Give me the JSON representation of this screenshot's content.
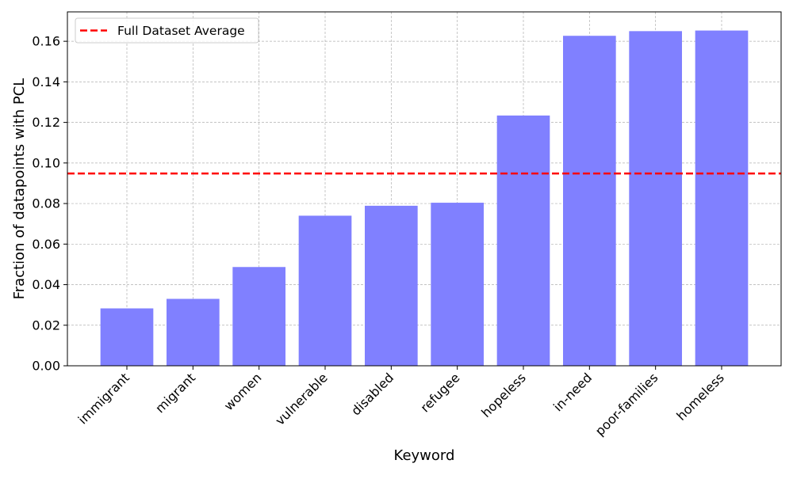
{
  "chart_data": {
    "type": "bar",
    "xlabel": "Keyword",
    "ylabel": "Fraction of datapoints with PCL",
    "categories": [
      "immigrant",
      "migrant",
      "women",
      "vulnerable",
      "disabled",
      "refugee",
      "hopeless",
      "in-need",
      "poor-families",
      "homeless"
    ],
    "values": [
      0.0283,
      0.033,
      0.0487,
      0.074,
      0.0789,
      0.0804,
      0.1234,
      0.1627,
      0.165,
      0.1653
    ],
    "reference_line": {
      "label": "Full Dataset Average",
      "value": 0.0948,
      "color": "#ff0000",
      "style": "dashed"
    },
    "ylim": [
      0,
      0.1745
    ],
    "yticks": [
      "0.00",
      "0.02",
      "0.04",
      "0.06",
      "0.08",
      "0.10",
      "0.12",
      "0.14",
      "0.16"
    ],
    "bar_color": "#8080ff",
    "grid": true,
    "legend_position": "upper-left"
  }
}
